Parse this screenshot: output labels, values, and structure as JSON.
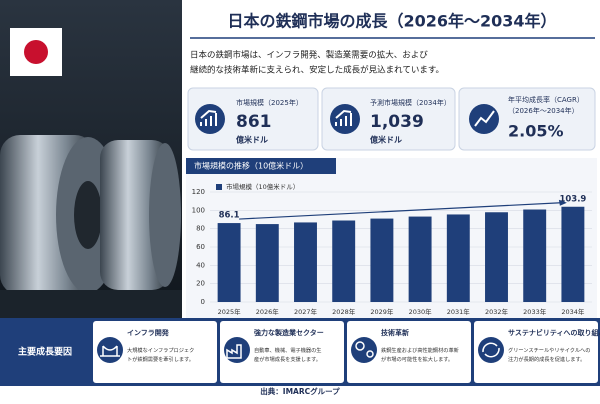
{
  "header": {
    "title": "日本の鉄鋼市場の成長（2026年～2034年）",
    "subtitle_lines": [
      "日本の鉄鋼市場は、インフラ開発、製造業需要の拡大、および",
      "継続的な技術革新に支えられ、安定した成長が見込まれています。"
    ]
  },
  "kpis": [
    {
      "label": "市場規模（2025年）",
      "value": "861",
      "unit": "億米ドル"
    },
    {
      "label": "予測市場規模（2034年）",
      "value": "1,039",
      "unit": "億米ドル"
    },
    {
      "label": "年平均成長率（CAGR）",
      "sublabel": "（2026年～2034年）",
      "value": "2.05%"
    }
  ],
  "chart_data": {
    "type": "bar",
    "title": "市場規模の推移（10億米ドル）",
    "categories": [
      "2025年",
      "2026年",
      "2027年",
      "2028年",
      "2029年",
      "2030年",
      "2031年",
      "2032年",
      "2033年",
      "2034年"
    ],
    "series": [
      {
        "name": "市場規模（10億米ドル）",
        "color": "#1f3f7a",
        "values": [
          86.1,
          85.0,
          86.8,
          88.9,
          91.0,
          93.2,
          95.5,
          97.9,
          100.9,
          103.9
        ],
        "value_labels": [
          "86.1",
          null,
          null,
          null,
          null,
          null,
          null,
          null,
          null,
          "103.9"
        ]
      }
    ],
    "ylim": [
      0,
      120
    ],
    "yticks": [
      0,
      20,
      40,
      60,
      80,
      100,
      120
    ],
    "grid": true
  },
  "factors": {
    "heading": "主要成長要因",
    "items": [
      {
        "title": "インフラ開発",
        "text": "大規模なインフラプロジェクトが鉄鋼需要を牽引します。"
      },
      {
        "title": "強力な製造業セクター",
        "text": "自動車、機械、電子機器の生産が市場成長を支援します。"
      },
      {
        "title": "技術革新",
        "text": "鉄鋼生産および高性能鋼材の革新が市場の可能性を拡大します。"
      },
      {
        "title": "サステナビリティへの取り組み",
        "text": "グリーンスチールやリサイクルへの注力が長期的成長を促進します。"
      }
    ]
  },
  "source": "出典：IMARCグループ"
}
